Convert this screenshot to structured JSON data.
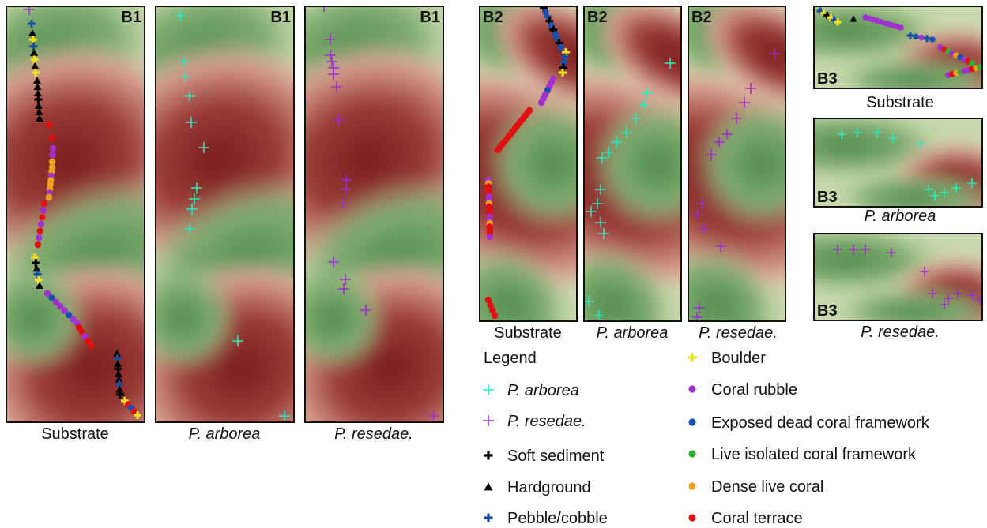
{
  "panels": [
    {
      "label": "B1",
      "caption": "Substrate"
    },
    {
      "label": "B1",
      "caption": "P. arborea"
    },
    {
      "label": "B1",
      "caption": "P. resedae."
    },
    {
      "label": "B2",
      "caption": "Substrate"
    },
    {
      "label": "B2",
      "caption": "P. arborea"
    },
    {
      "label": "B2",
      "caption": "P. resedae."
    },
    {
      "label": "B3",
      "caption": "Substrate"
    },
    {
      "label": "B3",
      "caption": "P. arborea"
    },
    {
      "label": "B3",
      "caption": "P. resedae."
    }
  ],
  "legend": {
    "title": "Legend",
    "items": [
      {
        "label": "P. arborea"
      },
      {
        "label": "P. resedae."
      },
      {
        "label": "Soft sediment"
      },
      {
        "label": "Hardground"
      },
      {
        "label": "Pebble/cobble"
      },
      {
        "label": "Boulder"
      },
      {
        "label": "Coral rubble"
      },
      {
        "label": "Exposed dead coral framework"
      },
      {
        "label": "Live isolated coral framework"
      },
      {
        "label": "Dense live coral"
      },
      {
        "label": "Coral terrace"
      }
    ]
  }
}
